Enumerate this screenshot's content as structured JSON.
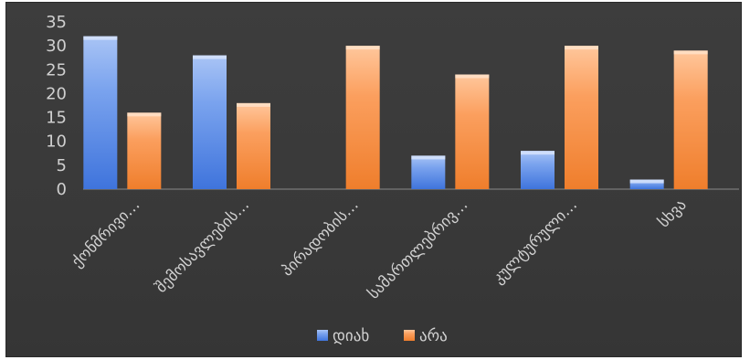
{
  "chart_data": {
    "type": "bar",
    "categories": [
      "ქონმრივი…",
      "შემოსავლების…",
      "პირადობის…",
      "სამართლებრივ…",
      "კულტურული…",
      "სხვა"
    ],
    "series": [
      {
        "name": "დიახ",
        "values": [
          32,
          28,
          0,
          7,
          8,
          2
        ],
        "color": "#5b8ff0"
      },
      {
        "name": "არა",
        "values": [
          16,
          18,
          30,
          24,
          30,
          29
        ],
        "color": "#f79646"
      }
    ],
    "ylim": [
      0,
      35
    ],
    "yticks": [
      0,
      5,
      10,
      15,
      20,
      25,
      30,
      35
    ],
    "legend_position": "bottom",
    "grid": false
  }
}
